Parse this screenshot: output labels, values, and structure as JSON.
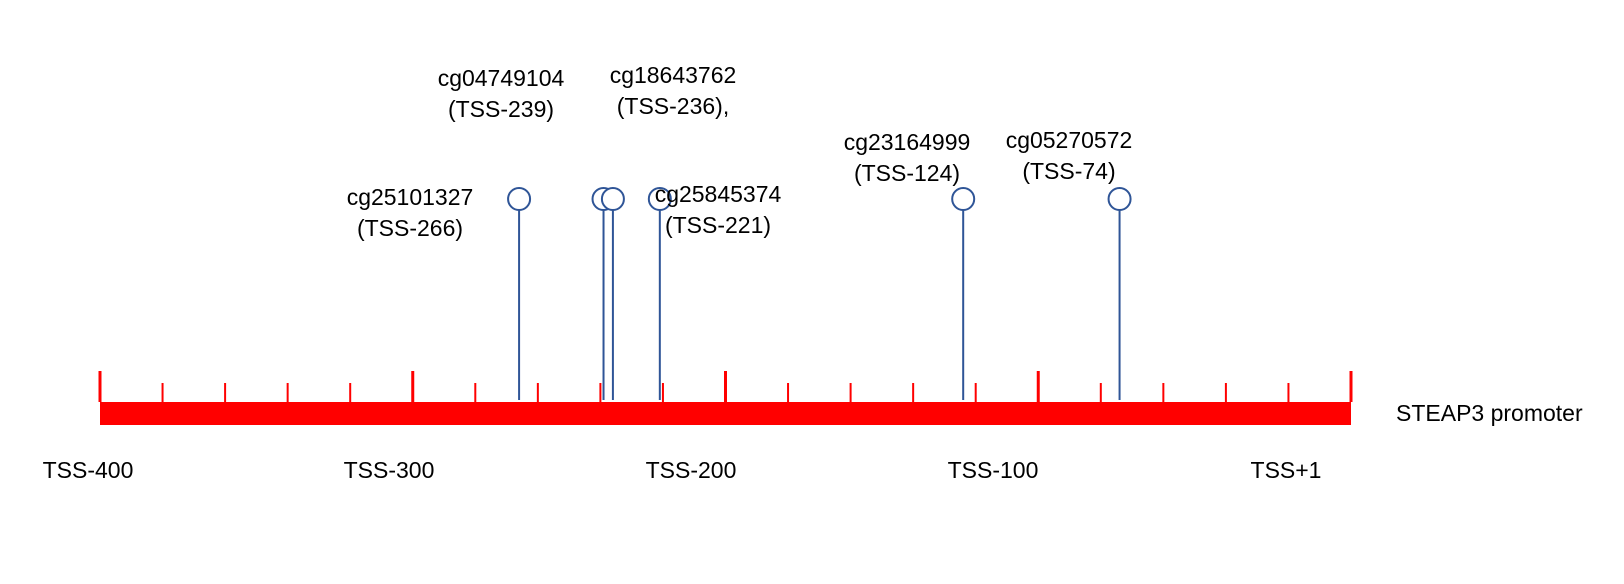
{
  "diagram": {
    "promoter_label": "STEAP3 promoter",
    "axis_labels": [
      "TSS-400",
      "TSS-300",
      "TSS-200",
      "TSS-100",
      "TSS+1"
    ],
    "colors": {
      "promoter_bar": "#ff0000",
      "site_marker": "#2f5597"
    },
    "sites": [
      {
        "id": "cg25101327",
        "position_label": "(TSS-266)",
        "tss_offset": -266
      },
      {
        "id": "cg04749104",
        "position_label": "(TSS-239)",
        "tss_offset": -239
      },
      {
        "id": "cg18643762",
        "position_label": "(TSS-236),",
        "tss_offset": -236
      },
      {
        "id": "cg25845374",
        "position_label": "(TSS-221)",
        "tss_offset": -221
      },
      {
        "id": "cg23164999",
        "position_label": "(TSS-124)",
        "tss_offset": -124
      },
      {
        "id": "cg05270572",
        "position_label": "(TSS-74)",
        "tss_offset": -74
      }
    ]
  }
}
